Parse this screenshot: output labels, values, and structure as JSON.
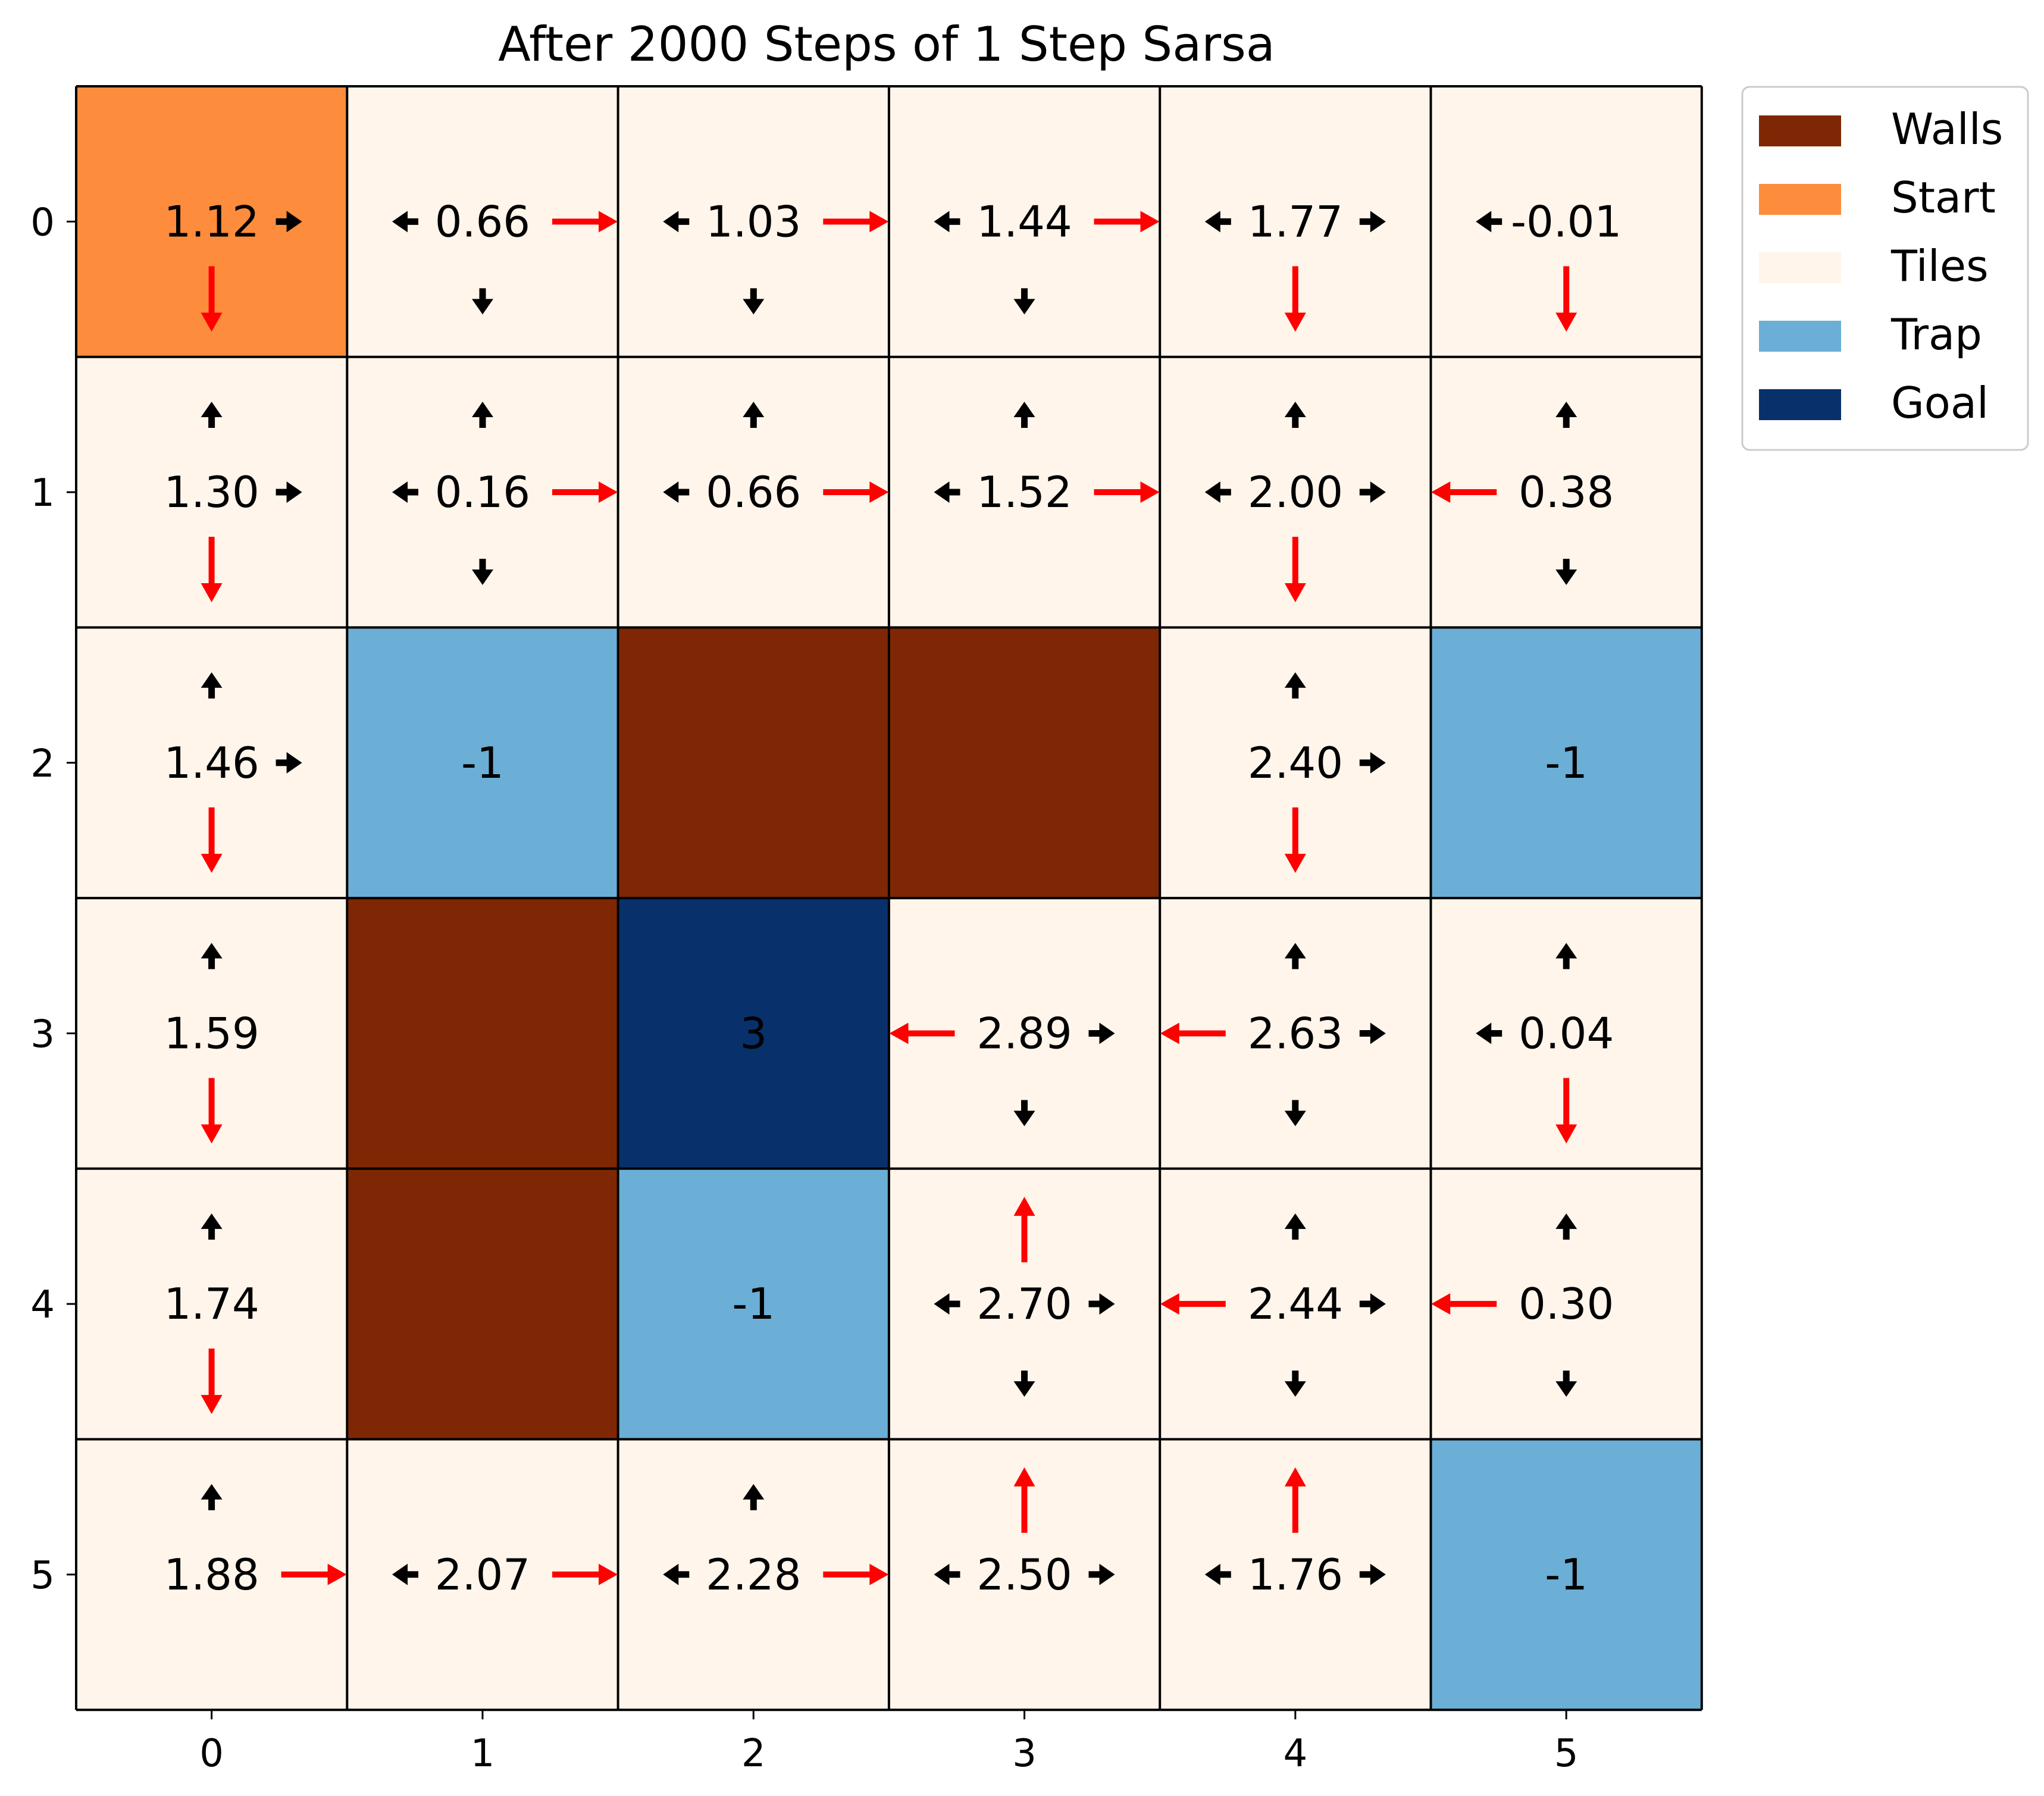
{
  "chart_data": {
    "type": "heatmap",
    "title": "After 2000 Steps of 1 Step Sarsa",
    "xlabel": "",
    "ylabel": "",
    "x_ticks": [
      "0",
      "1",
      "2",
      "3",
      "4",
      "5"
    ],
    "y_ticks": [
      "0",
      "1",
      "2",
      "3",
      "4",
      "5"
    ],
    "legend": {
      "placement": "outside-top-right",
      "entries": [
        {
          "label": "Walls",
          "color": "#7f2704"
        },
        {
          "label": "Start",
          "color": "#fd8d3c"
        },
        {
          "label": "Tiles",
          "color": "#fff5eb"
        },
        {
          "label": "Trap",
          "color": "#6baed6"
        },
        {
          "label": "Goal",
          "color": "#08306b"
        }
      ]
    },
    "colors": {
      "Walls": "#7f2704",
      "Start": "#fd8d3c",
      "Tiles": "#fff5eb",
      "Trap": "#6baed6",
      "Goal": "#08306b",
      "best_action_arrow": "#ff0000",
      "other_action_arrow": "#000000"
    },
    "grid": [
      [
        "Start",
        "Tiles",
        "Tiles",
        "Tiles",
        "Tiles",
        "Tiles"
      ],
      [
        "Tiles",
        "Tiles",
        "Tiles",
        "Tiles",
        "Tiles",
        "Tiles"
      ],
      [
        "Tiles",
        "Trap",
        "Walls",
        "Walls",
        "Tiles",
        "Trap"
      ],
      [
        "Tiles",
        "Walls",
        "Goal",
        "Tiles",
        "Tiles",
        "Tiles"
      ],
      [
        "Tiles",
        "Walls",
        "Trap",
        "Tiles",
        "Tiles",
        "Tiles"
      ],
      [
        "Tiles",
        "Tiles",
        "Tiles",
        "Tiles",
        "Tiles",
        "Trap"
      ]
    ],
    "cells": [
      {
        "row": 0,
        "col": 0,
        "value": "1.12",
        "arrows": {
          "right": "other",
          "down": "best"
        }
      },
      {
        "row": 0,
        "col": 1,
        "value": "0.66",
        "arrows": {
          "left": "other",
          "right": "best",
          "down": "other"
        }
      },
      {
        "row": 0,
        "col": 2,
        "value": "1.03",
        "arrows": {
          "left": "other",
          "right": "best",
          "down": "other"
        }
      },
      {
        "row": 0,
        "col": 3,
        "value": "1.44",
        "arrows": {
          "left": "other",
          "right": "best",
          "down": "other"
        }
      },
      {
        "row": 0,
        "col": 4,
        "value": "1.77",
        "arrows": {
          "left": "other",
          "right": "other",
          "down": "best"
        }
      },
      {
        "row": 0,
        "col": 5,
        "value": "-0.01",
        "arrows": {
          "left": "other",
          "down": "best"
        }
      },
      {
        "row": 1,
        "col": 0,
        "value": "1.30",
        "arrows": {
          "up": "other",
          "right": "other",
          "down": "best"
        }
      },
      {
        "row": 1,
        "col": 1,
        "value": "0.16",
        "arrows": {
          "up": "other",
          "left": "other",
          "right": "best",
          "down": "other"
        }
      },
      {
        "row": 1,
        "col": 2,
        "value": "0.66",
        "arrows": {
          "up": "other",
          "left": "other",
          "right": "best"
        }
      },
      {
        "row": 1,
        "col": 3,
        "value": "1.52",
        "arrows": {
          "up": "other",
          "left": "other",
          "right": "best"
        }
      },
      {
        "row": 1,
        "col": 4,
        "value": "2.00",
        "arrows": {
          "up": "other",
          "left": "other",
          "right": "other",
          "down": "best"
        }
      },
      {
        "row": 1,
        "col": 5,
        "value": "0.38",
        "arrows": {
          "up": "other",
          "left": "best",
          "down": "other"
        }
      },
      {
        "row": 2,
        "col": 0,
        "value": "1.46",
        "arrows": {
          "up": "other",
          "right": "other",
          "down": "best"
        }
      },
      {
        "row": 2,
        "col": 1,
        "value": "-1",
        "arrows": {}
      },
      {
        "row": 2,
        "col": 4,
        "value": "2.40",
        "arrows": {
          "up": "other",
          "right": "other",
          "down": "best"
        }
      },
      {
        "row": 2,
        "col": 5,
        "value": "-1",
        "arrows": {}
      },
      {
        "row": 3,
        "col": 0,
        "value": "1.59",
        "arrows": {
          "up": "other",
          "down": "best"
        }
      },
      {
        "row": 3,
        "col": 2,
        "value": "3",
        "arrows": {}
      },
      {
        "row": 3,
        "col": 3,
        "value": "2.89",
        "arrows": {
          "left": "best",
          "right": "other",
          "down": "other"
        }
      },
      {
        "row": 3,
        "col": 4,
        "value": "2.63",
        "arrows": {
          "up": "other",
          "left": "best",
          "right": "other",
          "down": "other"
        }
      },
      {
        "row": 3,
        "col": 5,
        "value": "0.04",
        "arrows": {
          "up": "other",
          "left": "other",
          "down": "best"
        }
      },
      {
        "row": 4,
        "col": 0,
        "value": "1.74",
        "arrows": {
          "up": "other",
          "down": "best"
        }
      },
      {
        "row": 4,
        "col": 2,
        "value": "-1",
        "arrows": {}
      },
      {
        "row": 4,
        "col": 3,
        "value": "2.70",
        "arrows": {
          "up": "best",
          "left": "other",
          "right": "other",
          "down": "other"
        }
      },
      {
        "row": 4,
        "col": 4,
        "value": "2.44",
        "arrows": {
          "up": "other",
          "left": "best",
          "right": "other",
          "down": "other"
        }
      },
      {
        "row": 4,
        "col": 5,
        "value": "0.30",
        "arrows": {
          "up": "other",
          "left": "best",
          "down": "other"
        }
      },
      {
        "row": 5,
        "col": 0,
        "value": "1.88",
        "arrows": {
          "up": "other",
          "right": "best"
        }
      },
      {
        "row": 5,
        "col": 1,
        "value": "2.07",
        "arrows": {
          "left": "other",
          "right": "best"
        }
      },
      {
        "row": 5,
        "col": 2,
        "value": "2.28",
        "arrows": {
          "up": "other",
          "left": "other",
          "right": "best"
        }
      },
      {
        "row": 5,
        "col": 3,
        "value": "2.50",
        "arrows": {
          "up": "best",
          "left": "other",
          "right": "other"
        }
      },
      {
        "row": 5,
        "col": 4,
        "value": "1.76",
        "arrows": {
          "up": "best",
          "left": "other",
          "right": "other"
        }
      },
      {
        "row": 5,
        "col": 5,
        "value": "-1",
        "arrows": {}
      }
    ]
  }
}
